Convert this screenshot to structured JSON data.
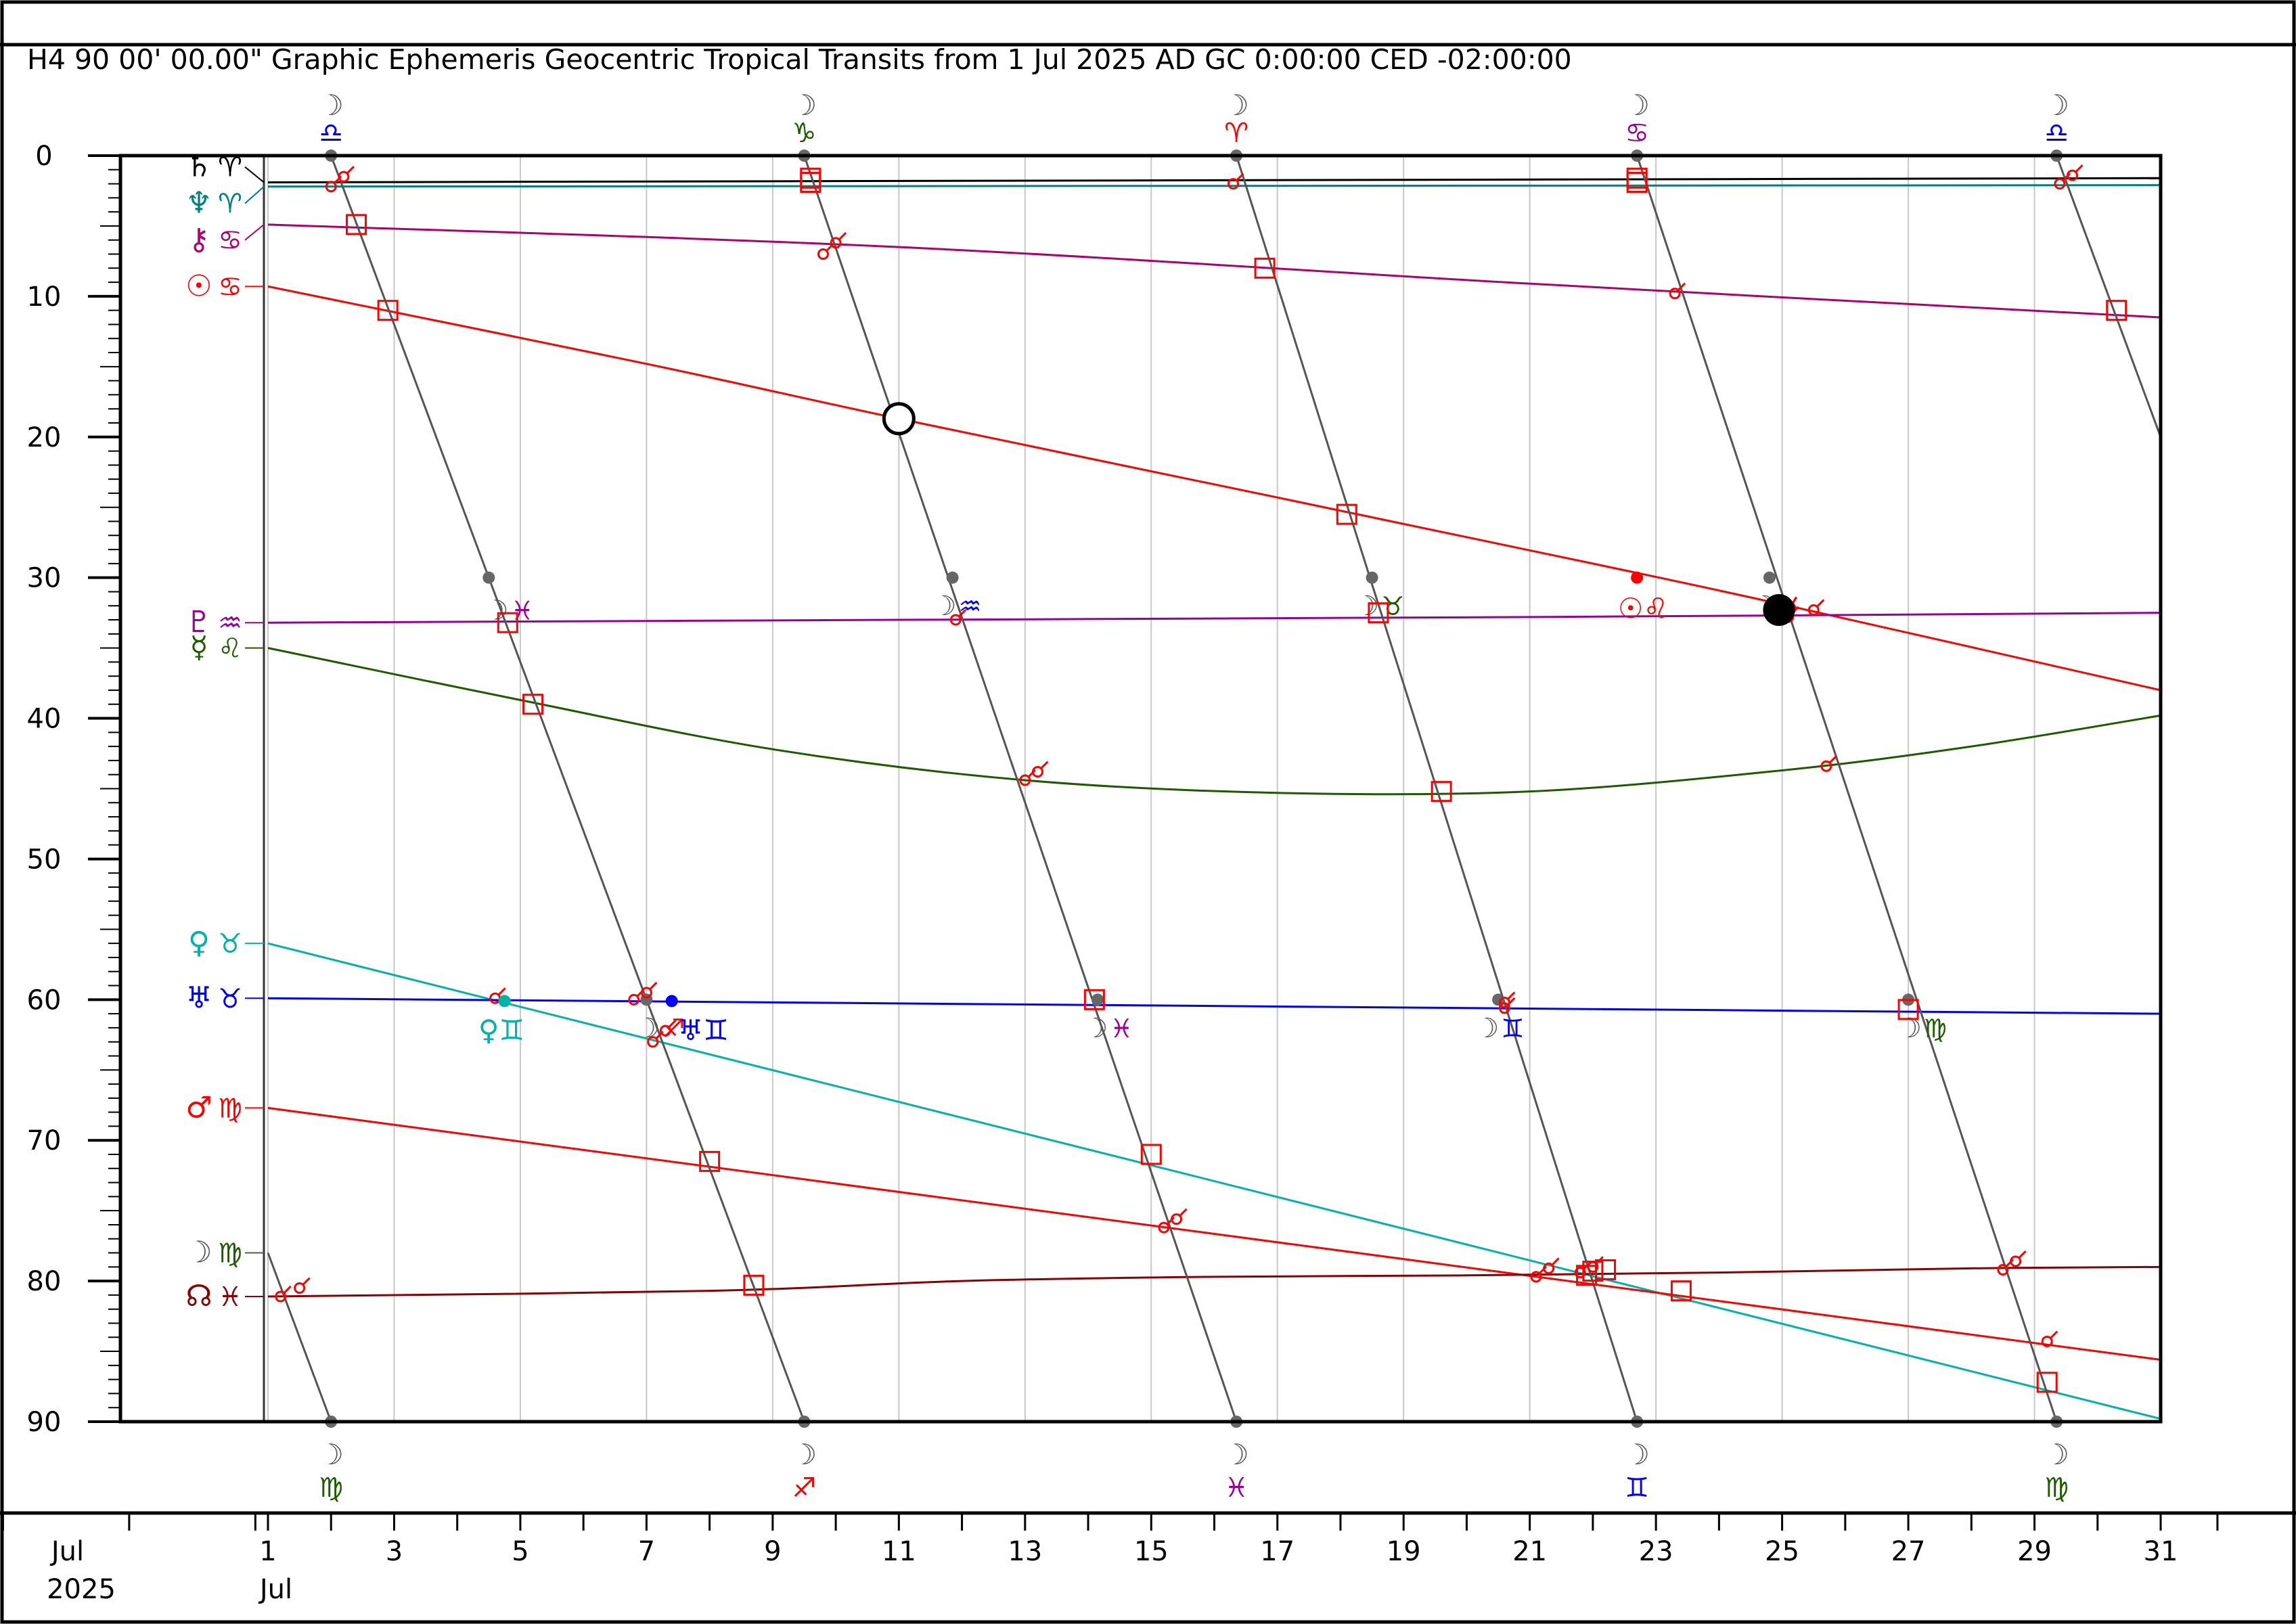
{
  "header": {
    "title": "H4   90 00' 00.00\" Graphic Ephemeris Geocentric Tropical Transits from 1 Jul 2025 AD GC 0:00:00 CED -02:00:00"
  },
  "colors": {
    "saturn": "#000000",
    "neptune": "#008080",
    "chiron": "#b0006b",
    "sun": "#ff0000",
    "pluto": "#990099",
    "mercury": "#1f5a00",
    "venus": "#00b3a6",
    "uranus": "#0000ff",
    "mars": "#ff0000",
    "node": "#8b0000",
    "moon": "#555555",
    "aspect": "#ff0000"
  },
  "chart_data": {
    "type": "line",
    "xlabel": "",
    "ylabel": "",
    "xlim": [
      "1 Jul 2025",
      "31 Jul 2025"
    ],
    "ylim": [
      0,
      90
    ],
    "grid": true,
    "y_ticks": [
      "0",
      "10",
      "20",
      "30",
      "40",
      "50",
      "60",
      "70",
      "80",
      "90"
    ],
    "x_ticks": [
      "1",
      "3",
      "5",
      "7",
      "9",
      "11",
      "13",
      "15",
      "17",
      "19",
      "21",
      "23",
      "25",
      "27",
      "29",
      "31"
    ],
    "x_start_label": {
      "month": "Jul",
      "year": "2025"
    },
    "x_first_month_label": "Jul",
    "series": [
      {
        "glyph": "♄",
        "sign": "♈",
        "color_key": "saturn",
        "x": [
          1,
          31
        ],
        "y": [
          1.9,
          1.6
        ]
      },
      {
        "glyph": "♆",
        "sign": "♈",
        "color_key": "neptune",
        "x": [
          1,
          31
        ],
        "y": [
          2.2,
          2.1
        ]
      },
      {
        "glyph": "⚷",
        "sign": "♋",
        "color_key": "chiron",
        "x": [
          1,
          11,
          21,
          31
        ],
        "y": [
          4.9,
          6.5,
          9.1,
          11.5
        ]
      },
      {
        "glyph": "☉",
        "sign": "♋",
        "color_key": "sun",
        "x": [
          1,
          7,
          11,
          17,
          22,
          25,
          31
        ],
        "y": [
          9.3,
          14.8,
          18.7,
          24.3,
          29.0,
          31.9,
          38.0
        ]
      },
      {
        "glyph": "♇",
        "sign": "♒",
        "color_key": "pluto",
        "x": [
          1,
          11,
          21,
          31
        ],
        "y": [
          33.2,
          33.0,
          32.8,
          32.5
        ]
      },
      {
        "glyph": "☿",
        "sign": "♌",
        "color_key": "mercury",
        "x": [
          1,
          5,
          9,
          13,
          17,
          21,
          25,
          28,
          31
        ],
        "y": [
          35.0,
          38.7,
          42.2,
          44.4,
          45.3,
          45.2,
          43.7,
          42.0,
          39.8
        ]
      },
      {
        "glyph": "♀",
        "sign": "♉",
        "color_key": "venus",
        "x": [
          1,
          31
        ],
        "y": [
          56.0,
          89.8
        ]
      },
      {
        "glyph": "♅",
        "sign": "♉",
        "color_key": "uranus",
        "x": [
          1,
          31
        ],
        "y": [
          59.9,
          61.0
        ]
      },
      {
        "glyph": "♂",
        "sign": "♍",
        "color_key": "mars",
        "x": [
          1,
          31
        ],
        "y": [
          67.7,
          85.6
        ]
      },
      {
        "glyph": "☊",
        "sign": "♓",
        "color_key": "node",
        "x": [
          1,
          8,
          12,
          16,
          20,
          24,
          28,
          31
        ],
        "y": [
          81.1,
          80.7,
          80.0,
          79.7,
          79.6,
          79.4,
          79.1,
          79.0
        ]
      }
    ],
    "moon": {
      "glyph": "☽",
      "color_key": "moon",
      "segments": [
        {
          "x": [
            1.0,
            2.0
          ],
          "y": [
            78.0,
            90.0
          ]
        },
        {
          "x": [
            2.0,
            9.5
          ],
          "y": [
            0.0,
            90.0
          ]
        },
        {
          "x": [
            9.5,
            16.35
          ],
          "y": [
            0.0,
            90.0
          ]
        },
        {
          "x": [
            16.35,
            22.7
          ],
          "y": [
            0.0,
            90.0
          ]
        },
        {
          "x": [
            22.7,
            29.35
          ],
          "y": [
            0.0,
            90.0
          ]
        },
        {
          "x": [
            29.35,
            31.0
          ],
          "y": [
            0.0,
            20.0
          ]
        }
      ],
      "top_crossings": [
        {
          "x": 2.0,
          "sign": "♎",
          "color": "#0000ff"
        },
        {
          "x": 9.5,
          "sign": "♑",
          "color": "#1f5a00"
        },
        {
          "x": 16.35,
          "sign": "♈",
          "color": "#ff0000"
        },
        {
          "x": 22.7,
          "sign": "♋",
          "color": "#990099"
        },
        {
          "x": 29.35,
          "sign": "♎",
          "color": "#0000ff"
        }
      ],
      "bottom_crossings": [
        {
          "x": 2.0,
          "sign": "♍",
          "color": "#1f5a00"
        },
        {
          "x": 9.5,
          "sign": "♐",
          "color": "#ff0000"
        },
        {
          "x": 16.35,
          "sign": "♓",
          "color": "#990099"
        },
        {
          "x": 22.7,
          "sign": "♊",
          "color": "#0000ff"
        },
        {
          "x": 29.35,
          "sign": "♍",
          "color": "#1f5a00"
        }
      ],
      "mid_dots": [
        {
          "x": 4.5,
          "y": 30
        },
        {
          "x": 11.85,
          "y": 30
        },
        {
          "x": 18.5,
          "y": 30
        },
        {
          "x": 24.8,
          "y": 30
        },
        {
          "x": 7.0,
          "y": 60
        },
        {
          "x": 14.15,
          "y": 60
        },
        {
          "x": 20.5,
          "y": 60
        },
        {
          "x": 27.0,
          "y": 60
        }
      ],
      "ingress_labels": [
        {
          "x": 4.9,
          "y": 32.3,
          "sign": "♓",
          "color": "#990099"
        },
        {
          "x": 12.0,
          "y": 32.0,
          "sign": "♒",
          "color": "#0000ff"
        },
        {
          "x": 18.7,
          "y": 32.0,
          "sign": "♉",
          "color": "#1f5a00"
        },
        {
          "x": 25.0,
          "y": 32.0,
          "sign": "☌",
          "color": "#ff0000"
        },
        {
          "x": 7.3,
          "y": 62.0,
          "sign": "♐",
          "color": "#ff0000"
        },
        {
          "x": 14.4,
          "y": 62.0,
          "sign": "♓",
          "color": "#990099"
        },
        {
          "x": 20.6,
          "y": 62.0,
          "sign": "♊",
          "color": "#0000ff"
        },
        {
          "x": 27.3,
          "y": 62.0,
          "sign": "♍",
          "color": "#1f5a00"
        }
      ]
    },
    "squares": [
      [
        2.4,
        4.9
      ],
      [
        2.9,
        11.0
      ],
      [
        4.8,
        33.2
      ],
      [
        5.2,
        39.0
      ],
      [
        8.0,
        71.5
      ],
      [
        8.7,
        80.3
      ],
      [
        9.6,
        1.9
      ],
      [
        9.6,
        1.6
      ],
      [
        14.1,
        60.0
      ],
      [
        15.0,
        71.0
      ],
      [
        16.8,
        8.0
      ],
      [
        18.1,
        25.5
      ],
      [
        18.6,
        32.5
      ],
      [
        19.6,
        45.2
      ],
      [
        21.9,
        79.6
      ],
      [
        22.0,
        79.3
      ],
      [
        22.2,
        79.2
      ],
      [
        22.7,
        1.9
      ],
      [
        22.7,
        1.6
      ],
      [
        23.4,
        80.7
      ],
      [
        27.0,
        60.7
      ],
      [
        29.2,
        87.2
      ],
      [
        30.3,
        11.0
      ]
    ],
    "sextiles": [
      [
        2.0,
        2.2
      ],
      [
        2.2,
        1.5
      ],
      [
        1.2,
        81.1
      ],
      [
        1.5,
        80.5
      ],
      [
        4.6,
        59.9
      ],
      [
        6.8,
        60.0
      ],
      [
        7.0,
        59.5
      ],
      [
        7.1,
        63.0
      ],
      [
        7.3,
        62.2
      ],
      [
        9.8,
        7.0
      ],
      [
        10.0,
        6.2
      ],
      [
        11.9,
        33.0
      ],
      [
        13.0,
        44.4
      ],
      [
        13.2,
        43.8
      ],
      [
        15.2,
        76.2
      ],
      [
        15.4,
        75.6
      ],
      [
        16.3,
        2.0
      ],
      [
        20.6,
        60.6
      ],
      [
        20.6,
        60.2
      ],
      [
        21.1,
        79.7
      ],
      [
        21.3,
        79.1
      ],
      [
        21.8,
        79.4
      ],
      [
        22.0,
        79.0
      ],
      [
        23.3,
        9.8
      ],
      [
        25.1,
        32.8
      ],
      [
        25.5,
        32.3
      ],
      [
        25.7,
        43.4
      ],
      [
        28.5,
        79.2
      ],
      [
        28.7,
        78.6
      ],
      [
        29.2,
        84.3
      ],
      [
        29.4,
        2.0
      ],
      [
        29.6,
        1.4
      ]
    ],
    "sun_moon": {
      "full_moon": {
        "x": 11.0,
        "y": 18.7
      },
      "new_moon": {
        "x": 24.95,
        "y": 32.3
      }
    },
    "point_markers": [
      {
        "x": 4.75,
        "y": 60.1,
        "color": "#00b3a6"
      },
      {
        "x": 7.4,
        "y": 60.1,
        "color": "#0000ff"
      },
      {
        "x": 22.7,
        "y": 30.0,
        "color": "#ff0000"
      }
    ],
    "annotations": [
      {
        "x": 4.7,
        "y": 62.2,
        "text": "♀♊",
        "color": "#00b3a6"
      },
      {
        "x": 7.9,
        "y": 62.2,
        "text": "♅♊",
        "color": "#0000ff"
      },
      {
        "x": 22.8,
        "y": 32.2,
        "text": "☉♌",
        "color": "#ff0000"
      }
    ]
  }
}
